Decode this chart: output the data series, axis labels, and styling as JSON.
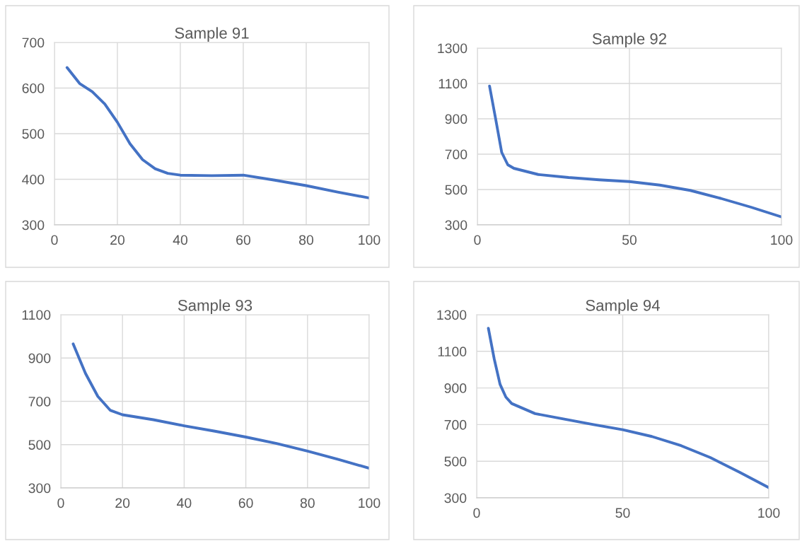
{
  "chart_data": [
    {
      "type": "line",
      "title": "Sample 91",
      "xlim": [
        0,
        100
      ],
      "xticks": [
        0,
        20,
        40,
        60,
        80,
        100
      ],
      "ylim": [
        300,
        700
      ],
      "yticks": [
        300,
        400,
        500,
        600,
        700
      ],
      "grid": true,
      "series": [
        {
          "color": "#4472c4",
          "x": [
            4,
            8,
            12,
            16,
            20,
            24,
            28,
            32,
            36,
            40,
            50,
            60,
            70,
            80,
            90,
            100
          ],
          "values": [
            645,
            610,
            592,
            565,
            525,
            478,
            443,
            423,
            413,
            409,
            408,
            409,
            398,
            386,
            372,
            359
          ]
        }
      ]
    },
    {
      "type": "line",
      "title": "Sample 92",
      "xlim": [
        0,
        100
      ],
      "xticks": [
        0,
        50,
        100
      ],
      "ylim": [
        300,
        1300
      ],
      "yticks": [
        300,
        500,
        700,
        900,
        1100,
        1300
      ],
      "grid": true,
      "series": [
        {
          "color": "#4472c4",
          "x": [
            4,
            6,
            8,
            10,
            12,
            20,
            30,
            40,
            50,
            60,
            70,
            80,
            90,
            100
          ],
          "values": [
            1085,
            900,
            710,
            640,
            620,
            585,
            568,
            555,
            545,
            525,
            495,
            450,
            400,
            345
          ]
        }
      ]
    },
    {
      "type": "line",
      "title": "Sample 93",
      "xlim": [
        0,
        100
      ],
      "xticks": [
        0,
        20,
        40,
        60,
        80,
        100
      ],
      "ylim": [
        300,
        1100
      ],
      "yticks": [
        300,
        500,
        700,
        900,
        1100
      ],
      "grid": true,
      "series": [
        {
          "color": "#4472c4",
          "x": [
            4,
            8,
            12,
            16,
            20,
            30,
            40,
            50,
            60,
            70,
            80,
            90,
            100
          ],
          "values": [
            965,
            829,
            723,
            659,
            638,
            615,
            587,
            562,
            535,
            505,
            470,
            432,
            391
          ]
        }
      ]
    },
    {
      "type": "line",
      "title": "Sample 94",
      "xlim": [
        0,
        100
      ],
      "xticks": [
        0,
        50,
        100
      ],
      "ylim": [
        300,
        1300
      ],
      "yticks": [
        300,
        500,
        700,
        900,
        1100,
        1300
      ],
      "grid": true,
      "series": [
        {
          "color": "#4472c4",
          "x": [
            4,
            6,
            8,
            10,
            12,
            20,
            30,
            40,
            50,
            60,
            70,
            80,
            90,
            100
          ],
          "values": [
            1226,
            1059,
            920,
            850,
            815,
            760,
            730,
            700,
            672,
            635,
            585,
            520,
            440,
            356
          ]
        }
      ]
    }
  ]
}
